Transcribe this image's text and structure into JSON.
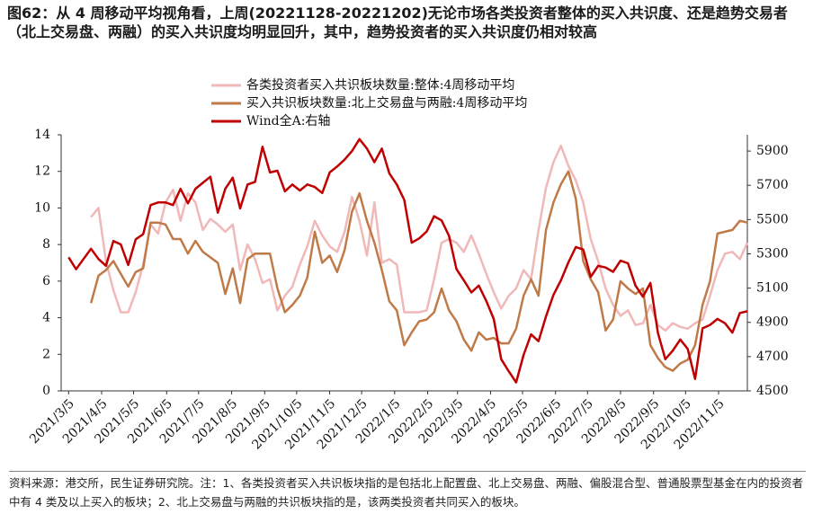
{
  "chart_data": {
    "type": "line",
    "title": "图62：从 4 周移动平均视角看，上周(20221128-20221202)无论市场各类投资者整体的买入共识度、还是趋势交易者（北上交易盘、两融）的买入共识度均明显回升，其中，趋势投资者的买入共识度仍相对较高",
    "note": "资料来源：港交所，民生证券研究院。注：1、各类投资者买入共识板块指的是包括北上配置盘、北上交易盘、两融、偏股混合型、普通股票型基金在内的投资者中有 4 类及以上买入的板块；2、北上交易盘与两融的共识板块指的是，该两类投资者共同买入的板块。",
    "x": [
      "2021/3/5",
      "2021/3/12",
      "2021/3/19",
      "2021/3/26",
      "2021/4/2",
      "2021/4/9",
      "2021/4/16",
      "2021/4/23",
      "2021/4/30",
      "2021/5/7",
      "2021/5/14",
      "2021/5/21",
      "2021/5/28",
      "2021/6/4",
      "2021/6/11",
      "2021/6/18",
      "2021/6/25",
      "2021/7/2",
      "2021/7/9",
      "2021/7/16",
      "2021/7/23",
      "2021/7/30",
      "2021/8/6",
      "2021/8/13",
      "2021/8/20",
      "2021/8/27",
      "2021/9/3",
      "2021/9/10",
      "2021/9/17",
      "2021/9/24",
      "2021/10/1",
      "2021/10/8",
      "2021/10/15",
      "2021/10/22",
      "2021/10/29",
      "2021/11/5",
      "2021/11/12",
      "2021/11/19",
      "2021/11/26",
      "2021/12/3",
      "2021/12/10",
      "2021/12/17",
      "2021/12/24",
      "2021/12/31",
      "2022/1/7",
      "2022/1/14",
      "2022/1/21",
      "2022/1/28",
      "2022/2/4",
      "2022/2/11",
      "2022/2/18",
      "2022/2/25",
      "2022/3/4",
      "2022/3/11",
      "2022/3/18",
      "2022/3/25",
      "2022/4/1",
      "2022/4/8",
      "2022/4/15",
      "2022/4/22",
      "2022/4/29",
      "2022/5/6",
      "2022/5/13",
      "2022/5/20",
      "2022/5/27",
      "2022/6/3",
      "2022/6/10",
      "2022/6/17",
      "2022/6/24",
      "2022/7/1",
      "2022/7/8",
      "2022/7/15",
      "2022/7/22",
      "2022/7/29",
      "2022/8/5",
      "2022/8/12",
      "2022/8/19",
      "2022/8/26",
      "2022/9/2",
      "2022/9/9",
      "2022/9/16",
      "2022/9/23",
      "2022/9/30",
      "2022/10/7",
      "2022/10/14",
      "2022/10/21",
      "2022/10/28",
      "2022/11/4",
      "2022/11/11",
      "2022/11/18",
      "2022/11/25",
      "2022/12/2"
    ],
    "xlim": [
      "2021/2/26",
      "2022/12/2"
    ],
    "xticks": [
      "2021/3/5",
      "2021/4/5",
      "2021/5/5",
      "2021/6/5",
      "2021/7/5",
      "2021/8/5",
      "2021/9/5",
      "2021/10/5",
      "2021/11/5",
      "2021/12/5",
      "2022/1/5",
      "2022/2/5",
      "2022/3/5",
      "2022/4/5",
      "2022/5/5",
      "2022/6/5",
      "2022/7/5",
      "2022/8/5",
      "2022/9/5",
      "2022/10/5",
      "2022/11/5"
    ],
    "ylim": [
      0,
      14
    ],
    "yticks": [
      0,
      2,
      4,
      6,
      8,
      10,
      12,
      14
    ],
    "y2lim": [
      4500,
      5995
    ],
    "y2ticks": [
      4500,
      4700,
      4900,
      5100,
      5300,
      5500,
      5700,
      5900
    ],
    "series": [
      {
        "name": "各类投资者买入共识板块数量:整体:4周移动平均",
        "color": "#f0b8b8",
        "values": [
          null,
          null,
          null,
          9.5,
          10.0,
          7.1,
          5.5,
          4.3,
          4.3,
          5.4,
          6.9,
          9.1,
          8.6,
          10.3,
          11.0,
          9.3,
          10.8,
          10.3,
          8.8,
          9.4,
          9.1,
          8.7,
          9.1,
          6.6,
          8.0,
          7.2,
          5.9,
          6.1,
          4.4,
          5.2,
          5.7,
          6.9,
          7.9,
          9.3,
          8.5,
          7.9,
          7.6,
          8.7,
          10.6,
          9.3,
          7.4,
          10.3,
          7.0,
          7.2,
          6.9,
          4.3,
          4.3,
          4.3,
          4.4,
          6.1,
          8.1,
          8.3,
          8.1,
          7.6,
          8.5,
          7.5,
          6.4,
          5.4,
          4.5,
          5.2,
          5.6,
          6.6,
          6.1,
          8.8,
          11.1,
          12.5,
          13.4,
          12.3,
          11.5,
          10.3,
          8.3,
          7.1,
          5.6,
          4.7,
          4.1,
          4.4,
          3.6,
          3.7,
          4.7,
          3.6,
          3.3,
          3.7,
          3.5,
          3.4,
          3.7,
          3.9,
          5.2,
          6.6,
          7.5,
          7.6,
          7.2,
          8.1
        ]
      },
      {
        "name": "买入共识板块数量:北上交易盘与两融:4周移动平均",
        "color": "#c07a48",
        "values": [
          null,
          null,
          null,
          4.8,
          6.3,
          6.6,
          7.1,
          6.4,
          5.7,
          6.5,
          6.7,
          9.2,
          9.2,
          9.1,
          8.3,
          8.3,
          7.5,
          8.2,
          7.6,
          7.3,
          7.0,
          5.3,
          6.7,
          4.8,
          7.2,
          7.5,
          7.5,
          7.5,
          5.6,
          4.3,
          4.7,
          5.2,
          6.2,
          8.7,
          7.0,
          7.4,
          6.5,
          7.7,
          9.8,
          10.8,
          9.3,
          8.1,
          6.6,
          4.9,
          4.4,
          2.5,
          3.2,
          3.8,
          3.9,
          4.3,
          5.6,
          4.4,
          3.8,
          2.8,
          2.2,
          3.2,
          2.8,
          2.9,
          2.6,
          2.6,
          3.4,
          5.2,
          6.1,
          5.2,
          8.8,
          10.3,
          11.3,
          12.0,
          10.5,
          7.1,
          6.1,
          5.4,
          3.3,
          3.9,
          6.0,
          5.6,
          5.3,
          5.6,
          2.5,
          1.8,
          1.3,
          1.1,
          1.5,
          1.7,
          2.5,
          4.7,
          6.0,
          8.6,
          8.7,
          8.8,
          9.3,
          9.2
        ]
      },
      {
        "name": "Wind全A:右轴",
        "color": "#c00000",
        "axis": "y2",
        "values": [
          5280,
          5210,
          5270,
          5330,
          5270,
          5230,
          5375,
          5355,
          5235,
          5385,
          5415,
          5585,
          5600,
          5600,
          5585,
          5680,
          5595,
          5680,
          5715,
          5750,
          5540,
          5680,
          5745,
          5565,
          5705,
          5720,
          5925,
          5775,
          5785,
          5665,
          5705,
          5670,
          5705,
          5690,
          5655,
          5775,
          5810,
          5850,
          5900,
          5970,
          5915,
          5835,
          5915,
          5770,
          5705,
          5615,
          5365,
          5390,
          5430,
          5520,
          5495,
          5405,
          5210,
          5145,
          5075,
          5115,
          5025,
          4920,
          4685,
          4615,
          4550,
          4710,
          4830,
          4790,
          4935,
          5060,
          5145,
          5250,
          5340,
          5325,
          5165,
          5230,
          5220,
          5195,
          5260,
          5245,
          5115,
          5050,
          5130,
          4840,
          4685,
          4735,
          4800,
          4745,
          4570,
          4865,
          4885,
          4920,
          4895,
          4840,
          4955,
          4965
        ]
      }
    ]
  }
}
